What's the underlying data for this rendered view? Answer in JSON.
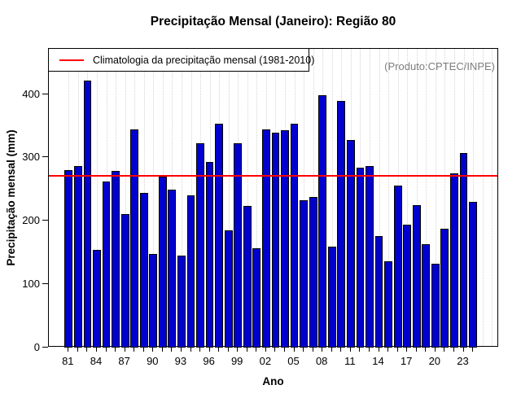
{
  "title": "Precipitação Mensal (Janeiro): Região 80",
  "product_label": "(Produto:CPTEC/INPE)",
  "legend": {
    "label": "Climatologia da precipitação mensal (1981-2010)"
  },
  "chart_data": {
    "type": "bar",
    "title": "Precipitação Mensal (Janeiro): Região 80",
    "xlabel": "Ano",
    "ylabel": "Precipitação mensal (mm)",
    "ylim": [
      0,
      470
    ],
    "yticks": [
      0,
      100,
      200,
      300,
      400
    ],
    "grid": "vertical dotted, one per year",
    "legend_position": "top-left",
    "bar_color": "#0101ce",
    "bar_border_color": "#000000",
    "line_color": "#ff0000",
    "grid_color": "#d4d4d4",
    "climatology_mm": 271,
    "x_label_every": 3,
    "x_tick_labels": [
      "81",
      "84",
      "87",
      "90",
      "93",
      "96",
      "99",
      "02",
      "05",
      "08",
      "11",
      "14",
      "17",
      "20",
      "23"
    ],
    "years": [
      1981,
      1982,
      1983,
      1984,
      1985,
      1986,
      1987,
      1988,
      1989,
      1990,
      1991,
      1992,
      1993,
      1994,
      1995,
      1996,
      1997,
      1998,
      1999,
      2000,
      2001,
      2002,
      2003,
      2004,
      2005,
      2006,
      2007,
      2008,
      2009,
      2010,
      2011,
      2012,
      2013,
      2014,
      2015,
      2016,
      2017,
      2018,
      2019,
      2020,
      2021,
      2022,
      2023,
      2024
    ],
    "values": [
      280,
      286,
      422,
      154,
      262,
      279,
      210,
      344,
      244,
      147,
      270,
      249,
      145,
      240,
      323,
      293,
      353,
      185,
      322,
      224,
      156,
      344,
      339,
      343,
      353,
      232,
      238,
      398,
      159,
      389,
      328,
      284,
      287,
      176,
      136,
      255,
      194,
      225,
      163,
      132,
      187,
      275,
      307,
      230
    ]
  }
}
